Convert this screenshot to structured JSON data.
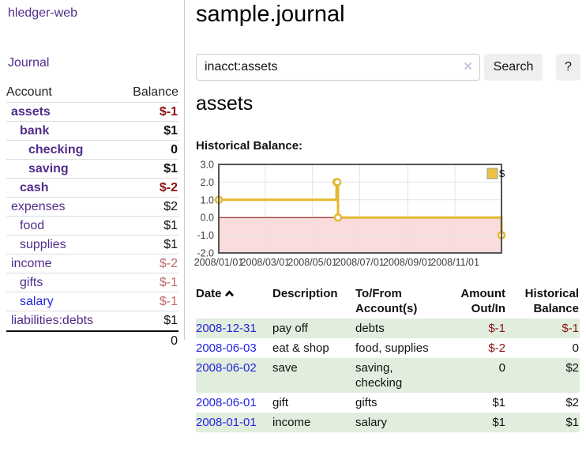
{
  "colors": {
    "purple": "#512d8a",
    "blue_link": "#2424e0",
    "neg_strong": "#8b1212",
    "neg_soft": "#bf6a6a",
    "row_green": "#e1eede",
    "chart_gold": "#EDC240",
    "chart_gold_line": "#e4b730",
    "chart_pink": "#fadcdc",
    "chart_zero": "#8b0000",
    "chart_border": "#545454",
    "chart_grid": "#e4e4e4",
    "btn_bg": "#efefef",
    "divider": "#cccccc",
    "clear_icon": "#cdc3e2"
  },
  "app_title": "hledger-web",
  "sidebar": {
    "journal_link": "Journal",
    "accounts_table": {
      "header_account": "Account",
      "header_balance": "Balance",
      "rows": [
        {
          "name": "assets",
          "level": 1,
          "bold": true,
          "name_style": "purple",
          "balance": "$-1",
          "balance_style": "negative_strong",
          "balance_bold": true
        },
        {
          "name": "bank",
          "level": 2,
          "bold": true,
          "name_style": "purple",
          "balance": "$1",
          "balance_style": "normal",
          "balance_bold": true
        },
        {
          "name": "checking",
          "level": 3,
          "bold": true,
          "name_style": "purple",
          "balance": "0",
          "balance_style": "normal",
          "balance_bold": true
        },
        {
          "name": "saving",
          "level": 3,
          "bold": true,
          "name_style": "purple",
          "balance": "$1",
          "balance_style": "normal",
          "balance_bold": true
        },
        {
          "name": "cash",
          "level": 2,
          "bold": true,
          "name_style": "purple",
          "balance": "$-2",
          "balance_style": "negative_strong",
          "balance_bold": true
        },
        {
          "name": "expenses",
          "level": 1,
          "bold": false,
          "name_style": "purple",
          "balance": "$2",
          "balance_style": "normal",
          "balance_bold": false
        },
        {
          "name": "food",
          "level": 2,
          "bold": false,
          "name_style": "purple",
          "balance": "$1",
          "balance_style": "normal",
          "balance_bold": false
        },
        {
          "name": "supplies",
          "level": 2,
          "bold": false,
          "name_style": "purple",
          "balance": "$1",
          "balance_style": "normal",
          "balance_bold": false
        },
        {
          "name": "income",
          "level": 1,
          "bold": false,
          "name_style": "purple",
          "balance": "$-2",
          "balance_style": "negative_soft",
          "balance_bold": false
        },
        {
          "name": "gifts",
          "level": 2,
          "bold": false,
          "name_style": "purple",
          "balance": "$-1",
          "balance_style": "negative_soft",
          "balance_bold": false
        },
        {
          "name": "salary",
          "level": 2,
          "bold": false,
          "name_style": "blue",
          "balance": "$-1",
          "balance_style": "negative_soft",
          "balance_bold": false
        },
        {
          "name": "liabilities:debts",
          "level": 1,
          "bold": false,
          "name_style": "purple",
          "balance": "$1",
          "balance_style": "normal",
          "balance_bold": false
        }
      ],
      "total": "0"
    }
  },
  "main": {
    "title": "sample.journal",
    "search": {
      "value": "inacct:assets",
      "clear_icon": "✕",
      "search_button": "Search",
      "help_button": "?"
    },
    "account_heading": "assets",
    "chart_title": "Historical Balance:"
  },
  "chart_data": {
    "type": "line",
    "step": true,
    "title": "Historical Balance:",
    "series": [
      {
        "name": "$",
        "points": [
          [
            "2008-01-01",
            1
          ],
          [
            "2008-06-01",
            2
          ],
          [
            "2008-06-02",
            2
          ],
          [
            "2008-06-03",
            0
          ],
          [
            "2008-12-31",
            -1
          ]
        ]
      }
    ],
    "x_start": "2008-01-01",
    "x_end": "2008-12-31",
    "xticks": [
      {
        "date": "2008-01-01",
        "label": "2008/01/01"
      },
      {
        "date": "2008-03-01",
        "label": "2008/03/01"
      },
      {
        "date": "2008-05-01",
        "label": "2008/05/01"
      },
      {
        "date": "2008-07-01",
        "label": "2008/07/01"
      },
      {
        "date": "2008-09-01",
        "label": "2008/09/01"
      },
      {
        "date": "2008-11-01",
        "label": "2008/11/01"
      }
    ],
    "yticks": [
      "3.0",
      "2.0",
      "1.0",
      "0.0",
      "-1.0",
      "-2.0"
    ],
    "ylim": [
      -2,
      3
    ],
    "legend": {
      "label": "$",
      "position": "top-right"
    },
    "negative_region": true,
    "grid": true
  },
  "register": {
    "headers": {
      "date": "Date",
      "description": "Description",
      "account_line1": "To/From",
      "account_line2": "Account(s)",
      "amount_line1": "Amount",
      "amount_line2": "Out/In",
      "balance_line1": "Historical",
      "balance_line2": "Balance"
    },
    "sort": {
      "column": "Date",
      "direction": "ascending"
    },
    "rows": [
      {
        "date": "2008-12-31",
        "description": "pay off",
        "accounts_lines": [
          "debts"
        ],
        "amount": "$-1",
        "amount_style": "negative_strong",
        "balance": "$-1",
        "balance_style": "negative_strong",
        "bg": "green"
      },
      {
        "date": "2008-06-03",
        "description": "eat & shop",
        "accounts_lines": [
          "food, supplies"
        ],
        "amount": "$-2",
        "amount_style": "negative_strong",
        "balance": "0",
        "balance_style": "normal",
        "bg": "white"
      },
      {
        "date": "2008-06-02",
        "description": "save",
        "accounts_lines": [
          "saving,",
          "checking"
        ],
        "amount": "0",
        "amount_style": "normal",
        "balance": "$2",
        "balance_style": "normal",
        "bg": "green"
      },
      {
        "date": "2008-06-01",
        "description": "gift",
        "accounts_lines": [
          "gifts"
        ],
        "amount": "$1",
        "amount_style": "normal",
        "balance": "$2",
        "balance_style": "normal",
        "bg": "white"
      },
      {
        "date": "2008-01-01",
        "description": "income",
        "accounts_lines": [
          "salary"
        ],
        "amount": "$1",
        "amount_style": "normal",
        "balance": "$1",
        "balance_style": "normal",
        "bg": "green"
      }
    ]
  }
}
